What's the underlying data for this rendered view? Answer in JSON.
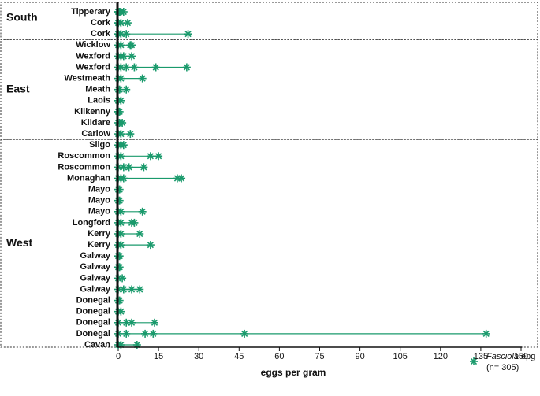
{
  "chart_data": {
    "type": "strip",
    "color": "#1a9a6c",
    "xlabel": "eggs per gram",
    "xlim": [
      0,
      150
    ],
    "xticks": [
      0,
      15,
      30,
      45,
      60,
      75,
      90,
      105,
      120,
      135,
      150
    ],
    "legend": {
      "name_italic": "Fasciola",
      "name": "epg",
      "note": "(n= 305)"
    },
    "groups": [
      {
        "name": "South",
        "rows": [
          {
            "label": "Tipperary",
            "values": [
              0,
              0,
              0.5,
              1,
              2
            ]
          },
          {
            "label": "Cork",
            "values": [
              0,
              0,
              1,
              3.5
            ]
          },
          {
            "label": "Cork",
            "values": [
              0,
              0,
              1,
              3,
              26
            ]
          }
        ]
      },
      {
        "name": "East",
        "rows": [
          {
            "label": "Wicklow",
            "values": [
              0,
              1,
              4.5,
              5
            ]
          },
          {
            "label": "Wexford",
            "values": [
              0,
              1,
              2,
              5
            ]
          },
          {
            "label": "Wexford",
            "values": [
              0,
              1,
              3,
              6,
              14,
              25.5
            ]
          },
          {
            "label": "Westmeath",
            "values": [
              0,
              1,
              9
            ]
          },
          {
            "label": "Meath",
            "values": [
              0,
              0.5,
              3
            ]
          },
          {
            "label": "Laois",
            "values": [
              0,
              0,
              1
            ]
          },
          {
            "label": "Kilkenny",
            "values": [
              0,
              0,
              0.5
            ]
          },
          {
            "label": "Kildare",
            "values": [
              0,
              0.5,
              1.5
            ]
          },
          {
            "label": "Carlow",
            "values": [
              0,
              1,
              4.5
            ]
          }
        ]
      },
      {
        "name": "West",
        "rows": [
          {
            "label": "Sligo",
            "values": [
              0,
              1,
              2
            ]
          },
          {
            "label": "Roscommon",
            "values": [
              0,
              1,
              12,
              15
            ]
          },
          {
            "label": "Roscommon",
            "values": [
              0,
              2,
              4,
              9.5
            ]
          },
          {
            "label": "Monaghan",
            "values": [
              0,
              1,
              2,
              22,
              23.5
            ]
          },
          {
            "label": "Mayo",
            "values": [
              0,
              0.5
            ]
          },
          {
            "label": "Mayo",
            "values": [
              0,
              0.5
            ]
          },
          {
            "label": "Mayo",
            "values": [
              0,
              1,
              9
            ]
          },
          {
            "label": "Longford",
            "values": [
              0,
              1,
              5,
              6
            ]
          },
          {
            "label": "Kerry",
            "values": [
              0,
              1,
              8
            ]
          },
          {
            "label": "Kerry",
            "values": [
              0,
              1,
              12
            ]
          },
          {
            "label": "Galway",
            "values": [
              0,
              0.5
            ]
          },
          {
            "label": "Galway",
            "values": [
              0,
              0.5
            ]
          },
          {
            "label": "Galway",
            "values": [
              0,
              1.5
            ]
          },
          {
            "label": "Galway",
            "values": [
              0,
              2,
              5,
              8
            ]
          },
          {
            "label": "Donegal",
            "values": [
              0,
              0.5
            ]
          },
          {
            "label": "Donegal",
            "values": [
              0,
              1
            ]
          },
          {
            "label": "Donegal",
            "values": [
              0,
              3,
              5,
              13.5
            ]
          },
          {
            "label": "Donegal",
            "values": [
              0,
              3,
              10,
              13,
              47,
              137
            ]
          },
          {
            "label": "Cavan",
            "values": [
              0,
              1,
              7
            ]
          }
        ]
      }
    ]
  }
}
